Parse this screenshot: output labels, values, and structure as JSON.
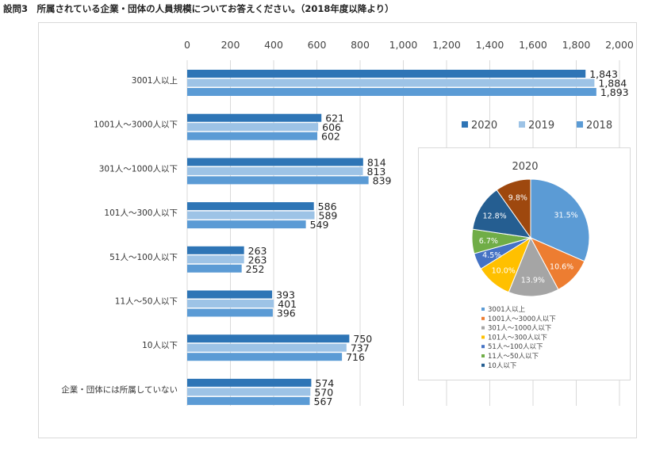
{
  "title": "設問3　所属されている企業・団体の人員規模についてお答えください。（2018年度以降より）",
  "colors": {
    "y2020": "#2e75b6",
    "y2019": "#9dc3e6",
    "y2018": "#5b9bd5"
  },
  "chart_data": [
    {
      "type": "bar",
      "orientation": "horizontal",
      "categories": [
        "3001人以上",
        "1001人～3000人以下",
        "301人～1000人以下",
        "101人～300人以下",
        "51人～100人以下",
        "11人～50人以下",
        "10人以下",
        "企業・団体には所属していない"
      ],
      "series": [
        {
          "name": "2020",
          "color": "#2e75b6",
          "values": [
            1843,
            621,
            814,
            586,
            263,
            393,
            750,
            574
          ]
        },
        {
          "name": "2019",
          "color": "#9dc3e6",
          "values": [
            1884,
            606,
            813,
            589,
            263,
            401,
            737,
            570
          ]
        },
        {
          "name": "2018",
          "color": "#5b9bd5",
          "values": [
            1893,
            602,
            839,
            549,
            252,
            396,
            716,
            567
          ]
        }
      ],
      "value_labels": [
        [
          "1,843",
          "621",
          "814",
          "586",
          "263",
          "393",
          "750",
          "574"
        ],
        [
          "1,884",
          "606",
          "813",
          "589",
          "263",
          "401",
          "737",
          "570"
        ],
        [
          "1,893",
          "602",
          "839",
          "549",
          "252",
          "396",
          "716",
          "567"
        ]
      ],
      "xlim": [
        0,
        2000
      ],
      "xticks": [
        0,
        200,
        400,
        600,
        800,
        1000,
        1200,
        1400,
        1600,
        1800,
        2000
      ],
      "xtick_labels": [
        "0",
        "200",
        "400",
        "600",
        "800",
        "1,000",
        "1,200",
        "1,400",
        "1,600",
        "1,800",
        "2,000"
      ],
      "xaxis_position": "top",
      "grid": true,
      "legend_position": "right"
    },
    {
      "type": "pie",
      "title": "2020",
      "slices": [
        {
          "label": "3001人以上",
          "value": 31.5,
          "text": "31.5%",
          "color": "#5b9bd5"
        },
        {
          "label": "1001人～3000人以下",
          "value": 10.6,
          "text": "10.6%",
          "color": "#ed7d31"
        },
        {
          "label": "301人～1000人以下",
          "value": 13.9,
          "text": "13.9%",
          "color": "#a5a5a5"
        },
        {
          "label": "101人～300人以下",
          "value": 10.0,
          "text": "10.0%",
          "color": "#ffc000"
        },
        {
          "label": "51人～100人以下",
          "value": 4.5,
          "text": "4.5%",
          "color": "#4472c4"
        },
        {
          "label": "11人～50人以下",
          "value": 6.7,
          "text": "6.7%",
          "color": "#70ad47"
        },
        {
          "label": "10人以下",
          "value": 12.8,
          "text": "12.8%",
          "color": "#255e91"
        },
        {
          "label": "",
          "value": 9.8,
          "text": "9.8%",
          "color": "#9e480e"
        }
      ],
      "legend": [
        "3001人以上",
        "1001人～3000人以下",
        "301人～1000人以下",
        "101人～300人以下",
        "51人～100人以下",
        "11人～50人以下",
        "10人以下"
      ],
      "legend_position": "bottom"
    }
  ]
}
